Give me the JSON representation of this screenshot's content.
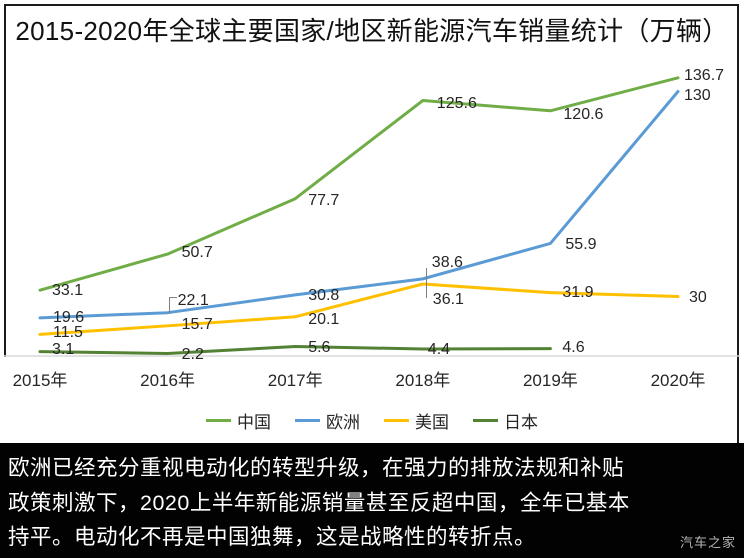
{
  "title": "2015-2020年全球主要国家/地区新能源汽车销量统计（万辆）",
  "chart_data": {
    "type": "line",
    "title": "2015-2020年全球主要国家/地区新能源汽车销量统计（万辆）",
    "unit": "万辆",
    "categories": [
      "2015年",
      "2016年",
      "2017年",
      "2018年",
      "2019年",
      "2020年"
    ],
    "series": [
      {
        "name": "中国",
        "key": "china",
        "color": "#70AD47",
        "values": [
          33.1,
          50.7,
          77.7,
          125.6,
          120.6,
          136.7
        ],
        "labels": [
          "33.1",
          "50.7",
          "77.7",
          "125.6",
          "120.6",
          "136.7"
        ]
      },
      {
        "name": "欧洲",
        "key": "europe",
        "color": "#5B9BD5",
        "values": [
          19.6,
          22.1,
          30.8,
          38.6,
          55.9,
          130
        ],
        "labels": [
          "19.6",
          "22.1",
          "30.8",
          "38.6",
          "55.9",
          "130"
        ]
      },
      {
        "name": "美国",
        "key": "usa",
        "color": "#FFC000",
        "values": [
          11.5,
          15.7,
          20.1,
          36.1,
          31.9,
          30
        ],
        "labels": [
          "11.5",
          "15.7",
          "20.1",
          "36.1",
          "31.9",
          "30"
        ]
      },
      {
        "name": "日本",
        "key": "japan",
        "color": "#548235",
        "values": [
          3.1,
          2.2,
          5.6,
          4.4,
          4.6,
          null
        ],
        "labels": [
          "3.1",
          "2.2",
          "5.6",
          "4.4",
          "4.6",
          null
        ]
      }
    ],
    "ylim": [
      0,
      150
    ],
    "grid": false,
    "legend_position": "bottom",
    "axis_color": "#d9d9d9"
  },
  "footer": {
    "lines": [
      "欧洲已经充分重视电动化的转型升级，在强力的排放法规和补贴",
      "政策刺激下，2020上半年新能源销量甚至反超中国，全年已基本",
      "持平。电动化不再是中国独舞，这是战略性的转折点。"
    ],
    "watermark": "汽车之家"
  }
}
